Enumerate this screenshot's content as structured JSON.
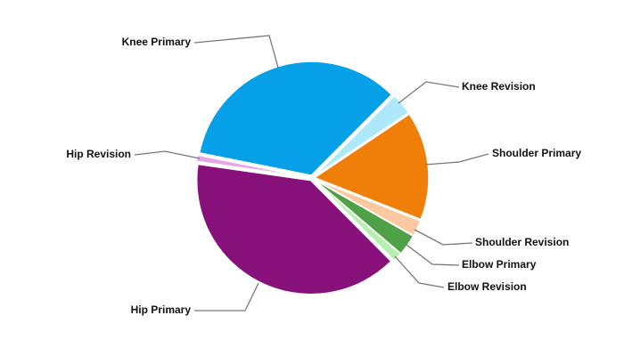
{
  "chart_data": {
    "type": "pie",
    "categories": [
      "Knee Primary",
      "Knee Revision",
      "Shoulder Primary",
      "Shoulder Revision",
      "Elbow Primary",
      "Elbow Revision",
      "Hip Primary",
      "Hip Revision"
    ],
    "values": [
      34.3,
      3.1,
      15.4,
      2.3,
      3.0,
      1.3,
      39.7,
      0.9
    ],
    "colors": [
      "#05a0e8",
      "#aee8fb",
      "#f07f09",
      "#fcc8a0",
      "#4ea147",
      "#b6f0b0",
      "#87107a",
      "#e8a6e4"
    ]
  }
}
